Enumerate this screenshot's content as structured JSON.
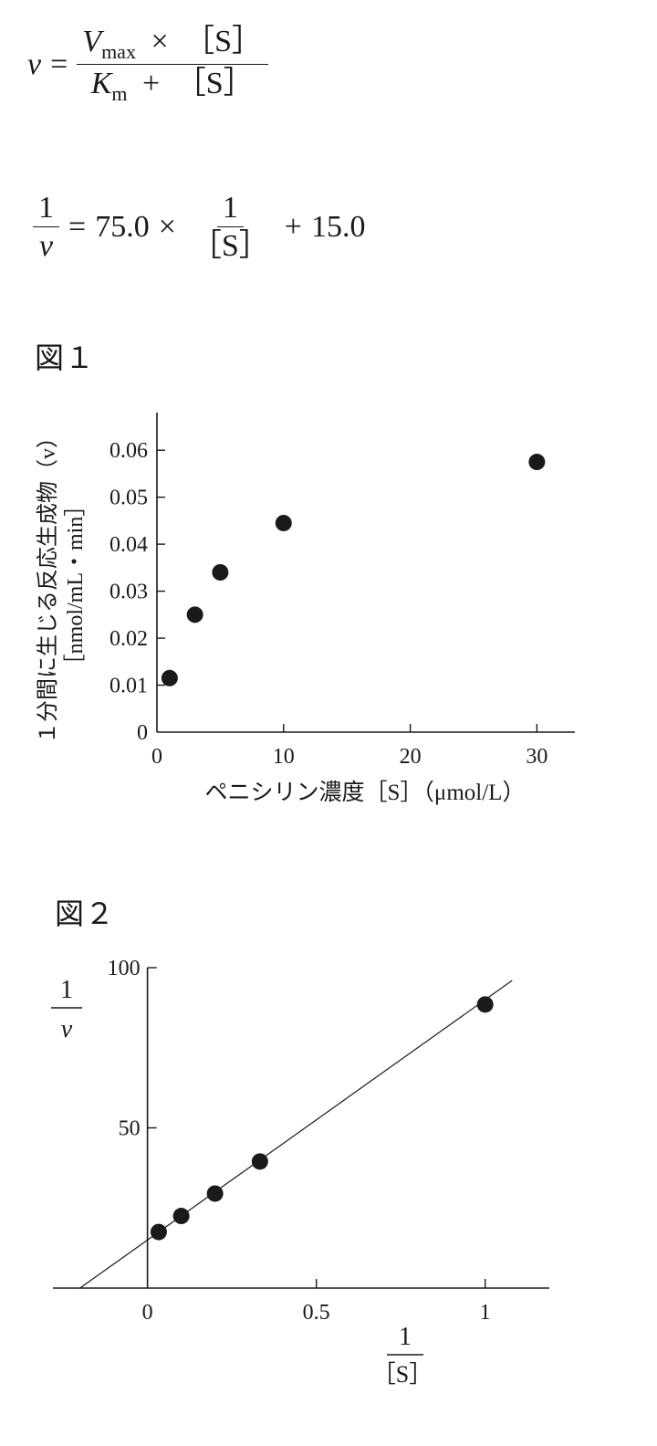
{
  "equation1": {
    "lhs": "v",
    "equals": "=",
    "numerator_var": "V",
    "numerator_sub": "max",
    "times": "×",
    "numerator_s": "［S］",
    "denominator_var": "K",
    "denominator_sub": "m",
    "plus": "+",
    "denominator_s": "［S］"
  },
  "equation2": {
    "lhs_num": "1",
    "lhs_den": "v",
    "equals": "=",
    "slope": "75.0",
    "times": "×",
    "frac_num": "1",
    "frac_den": "［S］",
    "plus": "+",
    "intercept": "15.0"
  },
  "figure1_label": "図１",
  "figure2_label": "図２",
  "chart_data": [
    {
      "type": "scatter",
      "title": "",
      "xlabel": "ペニシリン濃度［S］（μmol/L）",
      "ylabel_line1": "１分間に生じる反応生成物（v）",
      "ylabel_line2": "［nmol/mL・min］",
      "xlim": [
        0,
        33
      ],
      "ylim": [
        0,
        0.068
      ],
      "x_ticks": [
        0,
        10,
        20,
        30
      ],
      "x_tick_labels": [
        "0",
        "10",
        "20",
        "30"
      ],
      "y_ticks": [
        0,
        0.01,
        0.02,
        0.03,
        0.04,
        0.05,
        0.06
      ],
      "y_tick_labels": [
        "0",
        "0.01",
        "0.02",
        "0.03",
        "0.04",
        "0.05",
        "0.06"
      ],
      "x": [
        1,
        3,
        5,
        10,
        30
      ],
      "y": [
        0.0115,
        0.025,
        0.034,
        0.0445,
        0.0575
      ],
      "grid": false
    },
    {
      "type": "scatter",
      "title": "",
      "xlabel_num": "1",
      "xlabel_den": "［S］",
      "ylabel_num": "1",
      "ylabel_den": "v",
      "xlim": [
        -0.28,
        1.19
      ],
      "ylim": [
        0,
        100
      ],
      "x_ticks": [
        0,
        0.5,
        1
      ],
      "x_tick_labels": [
        "0",
        "0.5",
        "1"
      ],
      "y_ticks": [
        50,
        100
      ],
      "y_tick_labels": [
        "50",
        "100"
      ],
      "x": [
        0.0333,
        0.1,
        0.2,
        0.333,
        1.0
      ],
      "y": [
        17.5,
        22.5,
        29.5,
        39.5,
        88.5
      ],
      "fit_line": {
        "slope": 75.0,
        "intercept": 15.0,
        "x_range": [
          -0.2,
          1.08
        ]
      },
      "grid": false
    }
  ]
}
